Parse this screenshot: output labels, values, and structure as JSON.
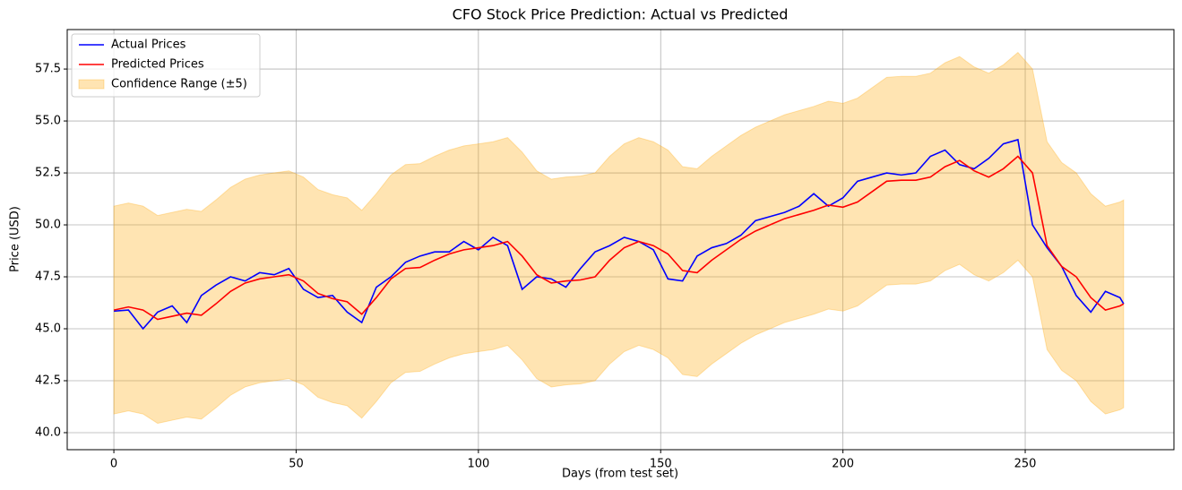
{
  "chart_data": {
    "type": "line",
    "title": "CFO Stock Price Prediction: Actual vs Predicted",
    "x_label": "Days (from test set)",
    "y_label": "Price (USD)",
    "xlim": [
      -12.8,
      290.8
    ],
    "ylim": [
      39.18,
      59.4
    ],
    "xticks": [
      0,
      50,
      100,
      150,
      200,
      250
    ],
    "yticks": [
      {
        "value": 40,
        "label": "40.0"
      },
      42.5,
      {
        "value": 45,
        "label": "45.0"
      },
      47.5,
      {
        "value": 50,
        "label": "50.0"
      },
      52.5,
      {
        "value": 55,
        "label": "55.0"
      },
      57.5
    ],
    "grid": true,
    "legend": "upper left",
    "x": [
      0,
      4,
      8,
      12,
      16,
      20,
      24,
      28,
      32,
      36,
      40,
      44,
      48,
      52,
      56,
      60,
      64,
      68,
      72,
      76,
      80,
      84,
      88,
      92,
      96,
      100,
      104,
      108,
      112,
      116,
      120,
      124,
      128,
      132,
      136,
      140,
      144,
      148,
      152,
      156,
      160,
      164,
      168,
      172,
      176,
      180,
      184,
      188,
      192,
      196,
      200,
      204,
      208,
      212,
      216,
      220,
      224,
      228,
      232,
      236,
      240,
      244,
      248,
      252,
      256,
      260,
      264,
      268,
      272,
      276,
      277
    ],
    "series": [
      {
        "name": "Actual Prices",
        "color": "#0000ff",
        "values": [
          45.85,
          45.9,
          45.0,
          45.8,
          46.1,
          45.3,
          46.6,
          47.1,
          47.5,
          47.3,
          47.7,
          47.6,
          47.9,
          46.9,
          46.5,
          46.6,
          45.8,
          45.3,
          47.0,
          47.5,
          48.2,
          48.5,
          48.7,
          48.7,
          49.2,
          48.8,
          49.4,
          49.0,
          46.9,
          47.5,
          47.4,
          47.0,
          47.9,
          48.7,
          49.0,
          49.4,
          49.2,
          48.8,
          47.4,
          47.3,
          48.5,
          48.9,
          49.1,
          49.5,
          50.2,
          50.4,
          50.6,
          50.9,
          51.5,
          50.9,
          51.3,
          52.1,
          52.3,
          52.5,
          52.4,
          52.5,
          53.3,
          53.6,
          52.9,
          52.7,
          53.2,
          53.9,
          54.1,
          50.0,
          48.9,
          48.0,
          46.6,
          45.8,
          46.8,
          46.5,
          46.2
        ]
      },
      {
        "name": "Predicted Prices",
        "color": "#ff0000",
        "values": [
          45.9,
          46.05,
          45.9,
          45.45,
          45.6,
          45.75,
          45.65,
          46.2,
          46.8,
          47.2,
          47.4,
          47.5,
          47.6,
          47.3,
          46.7,
          46.45,
          46.3,
          45.7,
          46.5,
          47.4,
          47.9,
          47.95,
          48.3,
          48.6,
          48.8,
          48.9,
          49.0,
          49.2,
          48.5,
          47.6,
          47.2,
          47.3,
          47.35,
          47.5,
          48.3,
          48.9,
          49.2,
          49.0,
          48.6,
          47.8,
          47.7,
          48.3,
          48.8,
          49.3,
          49.7,
          50.0,
          50.3,
          50.5,
          50.7,
          50.95,
          50.85,
          51.1,
          51.6,
          52.1,
          52.15,
          52.15,
          52.3,
          52.8,
          53.1,
          52.6,
          52.3,
          52.7,
          53.3,
          52.5,
          49.0,
          48.0,
          47.5,
          46.5,
          45.9,
          46.1,
          46.2
        ]
      }
    ],
    "band": {
      "name": "Confidence Range (±5)",
      "color": "#ffa500",
      "lower": [
        40.9,
        41.05,
        40.9,
        40.45,
        40.6,
        40.75,
        40.65,
        41.2,
        41.8,
        42.2,
        42.4,
        42.5,
        42.6,
        42.3,
        41.7,
        41.45,
        41.3,
        40.7,
        41.5,
        42.4,
        42.9,
        42.95,
        43.3,
        43.6,
        43.8,
        43.9,
        44.0,
        44.2,
        43.5,
        42.6,
        42.2,
        42.3,
        42.35,
        42.5,
        43.3,
        43.9,
        44.2,
        44.0,
        43.6,
        42.8,
        42.7,
        43.3,
        43.8,
        44.3,
        44.7,
        45.0,
        45.3,
        45.5,
        45.7,
        45.95,
        45.85,
        46.1,
        46.6,
        47.1,
        47.15,
        47.15,
        47.3,
        47.8,
        48.1,
        47.6,
        47.3,
        47.7,
        48.3,
        47.5,
        44.0,
        43.0,
        42.5,
        41.5,
        40.9,
        41.1,
        41.2
      ],
      "upper": [
        50.9,
        51.05,
        50.9,
        50.45,
        50.6,
        50.75,
        50.65,
        51.2,
        51.8,
        52.2,
        52.4,
        52.5,
        52.6,
        52.3,
        51.7,
        51.45,
        51.3,
        50.7,
        51.5,
        52.4,
        52.9,
        52.95,
        53.3,
        53.6,
        53.8,
        53.9,
        54.0,
        54.2,
        53.5,
        52.6,
        52.2,
        52.3,
        52.35,
        52.5,
        53.3,
        53.9,
        54.2,
        54.0,
        53.6,
        52.8,
        52.7,
        53.3,
        53.8,
        54.3,
        54.7,
        55.0,
        55.3,
        55.5,
        55.7,
        55.95,
        55.85,
        56.1,
        56.6,
        57.1,
        57.15,
        57.15,
        57.3,
        57.8,
        58.1,
        57.6,
        57.3,
        57.7,
        58.3,
        57.5,
        54.0,
        53.0,
        52.5,
        51.5,
        50.9,
        51.1,
        51.2
      ]
    }
  }
}
